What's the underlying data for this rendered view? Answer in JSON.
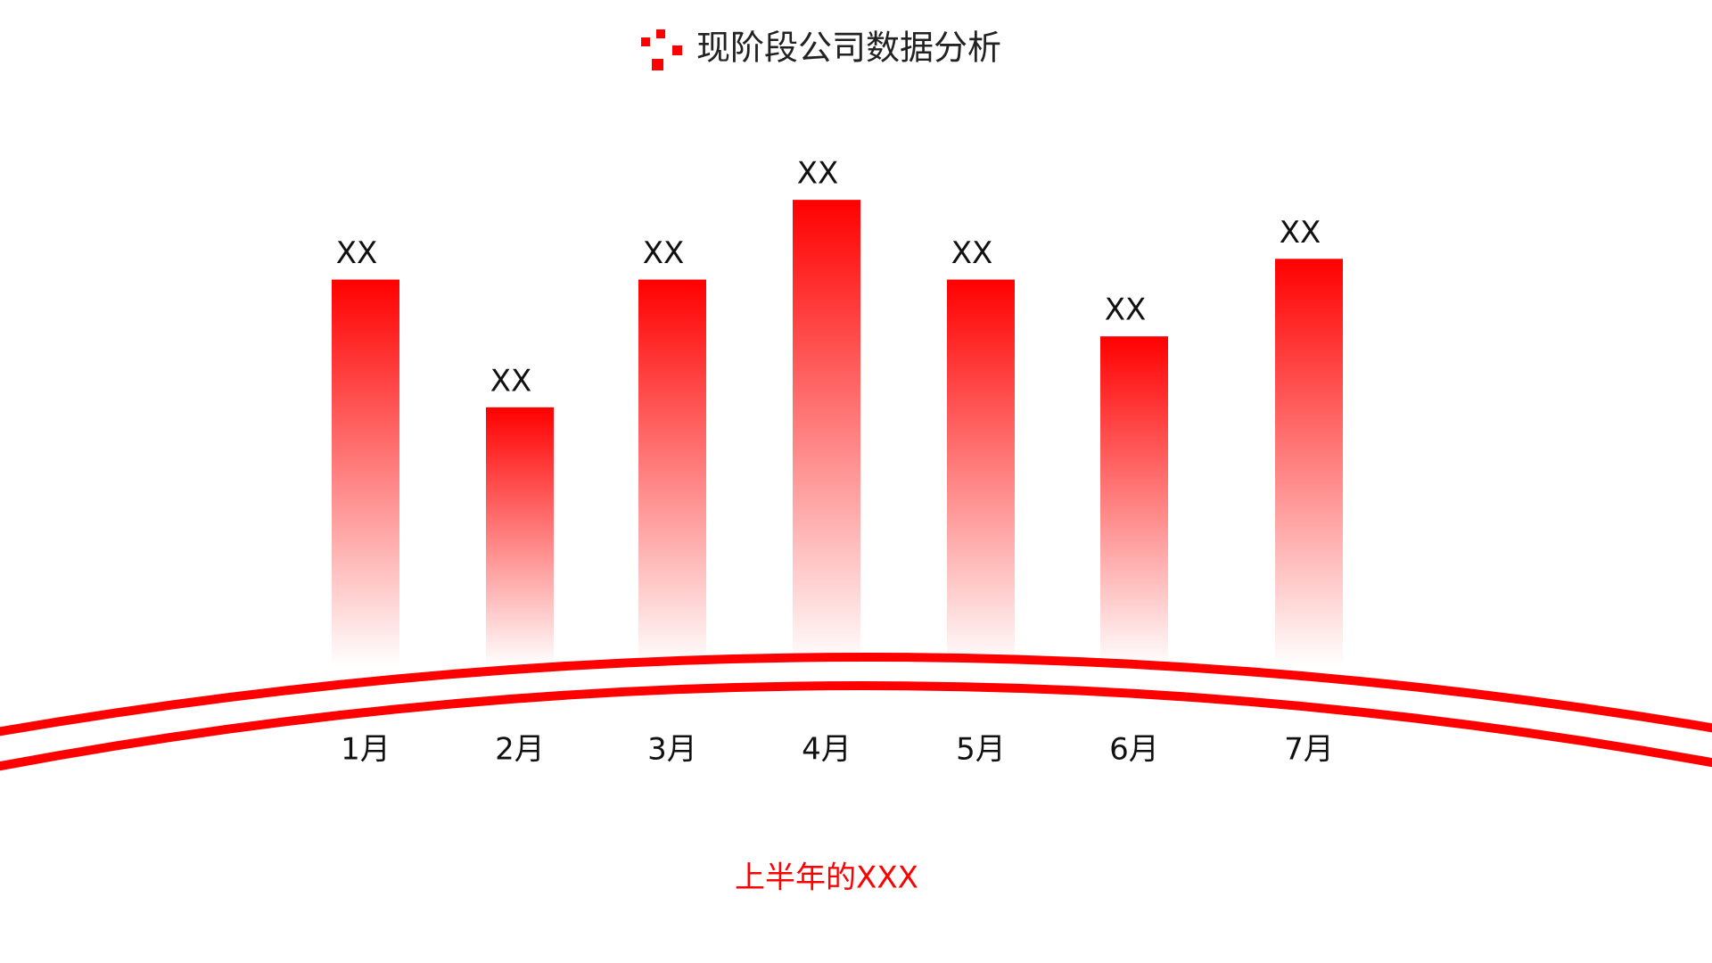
{
  "chart_data": {
    "type": "bar",
    "title": "现阶段公司数据分析",
    "annotation": "上半年的XXX",
    "categories": [
      "1月",
      "2月",
      "3月",
      "4月",
      "5月",
      "6月",
      "7月"
    ],
    "values": [
      354,
      237,
      354,
      427,
      354,
      302,
      373
    ],
    "value_labels": [
      "XX",
      "XX",
      "XX",
      "XX",
      "XX",
      "XX",
      "XX"
    ],
    "color": "#ff0000",
    "ylim": [
      0,
      450
    ]
  }
}
